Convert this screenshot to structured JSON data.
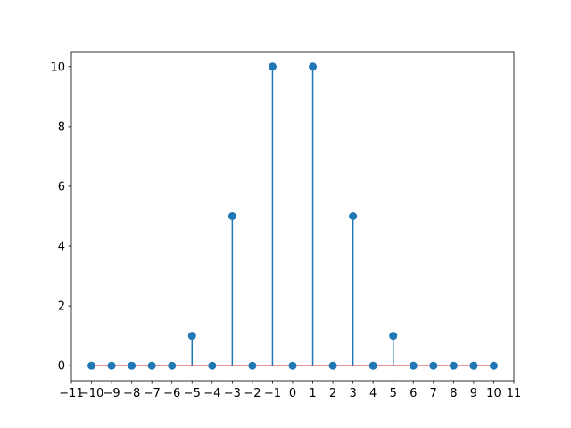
{
  "chart_data": {
    "type": "stem",
    "x": [
      -10,
      -9,
      -8,
      -7,
      -6,
      -5,
      -4,
      -3,
      -2,
      -1,
      0,
      1,
      2,
      3,
      4,
      5,
      6,
      7,
      8,
      9,
      10
    ],
    "values": [
      0,
      0,
      0,
      0,
      0,
      1,
      0,
      5,
      0,
      10,
      0,
      10,
      0,
      5,
      0,
      1,
      0,
      0,
      0,
      0,
      0
    ],
    "color": "#1f77b4",
    "baseline_color": "#d62728",
    "xlim": [
      -11,
      11
    ],
    "xticks": [
      {
        "value": -11,
        "label": "−11"
      },
      {
        "value": -10,
        "label": "−10"
      },
      {
        "value": -9,
        "label": "−9"
      },
      {
        "value": -8,
        "label": "−8"
      },
      {
        "value": -7,
        "label": "−7"
      },
      {
        "value": -6,
        "label": "−6"
      },
      {
        "value": -5,
        "label": "−5"
      },
      {
        "value": -4,
        "label": "−4"
      },
      {
        "value": -3,
        "label": "−3"
      },
      {
        "value": -2,
        "label": "−2"
      },
      {
        "value": -1,
        "label": "−1"
      },
      0,
      1,
      2,
      3,
      4,
      5,
      6,
      7,
      8,
      9,
      10,
      11
    ],
    "ylim": [
      -0.5,
      10.5
    ],
    "yticks": [
      0,
      2,
      4,
      6,
      8,
      10
    ],
    "grid": false
  }
}
